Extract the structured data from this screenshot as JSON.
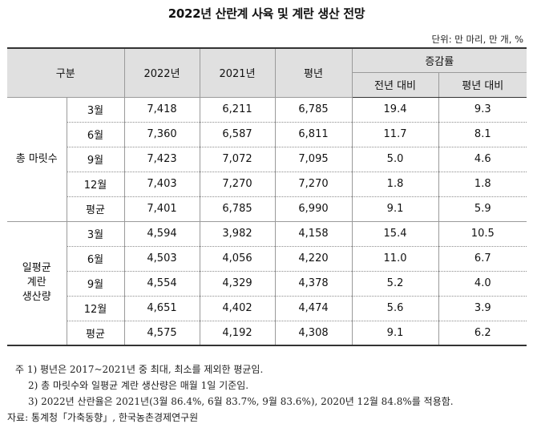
{
  "title": "2022년 산란계 사육 및 계란 생산 전망",
  "unit": "단위: 만 마리, 만 개, %",
  "header": {
    "category": "구분",
    "y2022": "2022년",
    "y2021": "2021년",
    "avg": "평년",
    "change": "증감률",
    "vs_prev": "전년 대비",
    "vs_avg": "평년 대비"
  },
  "groups": [
    {
      "label": "총 마릿수",
      "rows": [
        {
          "period": "3월",
          "y2022": "7,418",
          "y2021": "6,211",
          "avg": "6,785",
          "vs_prev": "19.4",
          "vs_avg": "9.3"
        },
        {
          "period": "6월",
          "y2022": "7,360",
          "y2021": "6,587",
          "avg": "6,811",
          "vs_prev": "11.7",
          "vs_avg": "8.1"
        },
        {
          "period": "9월",
          "y2022": "7,423",
          "y2021": "7,072",
          "avg": "7,095",
          "vs_prev": "5.0",
          "vs_avg": "4.6"
        },
        {
          "period": "12월",
          "y2022": "7,403",
          "y2021": "7,270",
          "avg": "7,270",
          "vs_prev": "1.8",
          "vs_avg": "1.8"
        },
        {
          "period": "평균",
          "y2022": "7,401",
          "y2021": "6,785",
          "avg": "6,990",
          "vs_prev": "9.1",
          "vs_avg": "5.9"
        }
      ]
    },
    {
      "label_lines": [
        "일평균",
        "계란",
        "생산량"
      ],
      "rows": [
        {
          "period": "3월",
          "y2022": "4,594",
          "y2021": "3,982",
          "avg": "4,158",
          "vs_prev": "15.4",
          "vs_avg": "10.5"
        },
        {
          "period": "6월",
          "y2022": "4,503",
          "y2021": "4,056",
          "avg": "4,220",
          "vs_prev": "11.0",
          "vs_avg": "6.7"
        },
        {
          "period": "9월",
          "y2022": "4,554",
          "y2021": "4,329",
          "avg": "4,378",
          "vs_prev": "5.2",
          "vs_avg": "4.0"
        },
        {
          "period": "12월",
          "y2022": "4,651",
          "y2021": "4,402",
          "avg": "4,474",
          "vs_prev": "5.6",
          "vs_avg": "3.9"
        },
        {
          "period": "평균",
          "y2022": "4,575",
          "y2021": "4,192",
          "avg": "4,308",
          "vs_prev": "9.1",
          "vs_avg": "6.2"
        }
      ]
    }
  ],
  "notes": [
    "주 1) 평년은 2017~2021년 중 최대, 최소를 제외한 평균임.",
    "2) 총 마릿수와 일평균 계란 생산량은 매월 1일 기준임.",
    "3) 2022년 산란율은 2021년(3월 86.4%, 6월 83.7%, 9월 83.6%), 2020년 12월 84.8%를 적용함."
  ],
  "source": "자료: 통계청「가축동향」, 한국농촌경제연구원"
}
